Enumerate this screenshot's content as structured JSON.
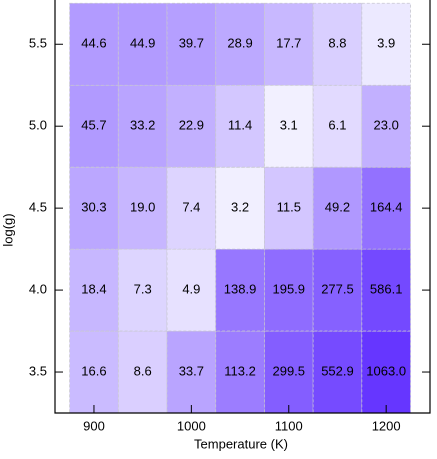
{
  "chart_data": {
    "type": "heatmap",
    "x_label": "Temperature (K)",
    "y_label": "log(g)",
    "x": [
      900,
      950,
      1000,
      1050,
      1100,
      1150,
      1200
    ],
    "y": [
      3.5,
      4.0,
      4.5,
      5.0,
      5.5
    ],
    "values": [
      [
        16.6,
        8.6,
        33.7,
        113.2,
        299.5,
        552.9,
        1063.0
      ],
      [
        18.4,
        7.3,
        4.9,
        138.9,
        195.9,
        277.5,
        586.1
      ],
      [
        30.3,
        19.0,
        7.4,
        3.2,
        11.5,
        49.2,
        164.4
      ],
      [
        45.7,
        33.2,
        22.9,
        11.4,
        3.1,
        6.1,
        23.0
      ],
      [
        44.6,
        44.9,
        39.7,
        28.9,
        17.7,
        8.8,
        3.9
      ]
    ],
    "value_labels": [
      [
        "16.6",
        "8.6",
        "33.7",
        "113.2",
        "299.5",
        "552.9",
        "1063.0"
      ],
      [
        "18.4",
        "7.3",
        "4.9",
        "138.9",
        "195.9",
        "277.5",
        "586.1"
      ],
      [
        "30.3",
        "19.0",
        "7.4",
        "3.2",
        "11.5",
        "49.2",
        "164.4"
      ],
      [
        "45.7",
        "33.2",
        "22.9",
        "11.4",
        "3.1",
        "6.1",
        "23.0"
      ],
      [
        "44.6",
        "44.9",
        "39.7",
        "28.9",
        "17.7",
        "8.8",
        "3.9"
      ]
    ],
    "xlim": [
      860,
      1245
    ],
    "xticks": [
      900,
      1000,
      1100,
      1200
    ],
    "ylim": [
      3.25,
      5.77
    ],
    "yticks": [
      3.5,
      {
        "value": 4,
        "label": "4.0"
      },
      4.5,
      {
        "value": 5,
        "label": "5.0"
      },
      5.5
    ],
    "color_scale": "log",
    "colormap": [
      "#f2f0ff",
      "#6636ff"
    ]
  }
}
